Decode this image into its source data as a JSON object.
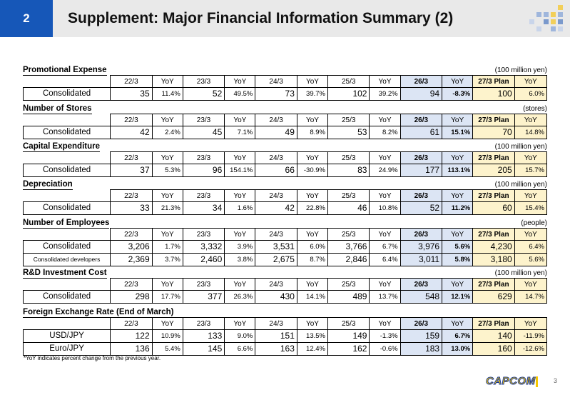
{
  "header": {
    "number": "2",
    "title": "Supplement: Major Financial Information Summary (2)"
  },
  "columns": [
    "22/3",
    "YoY",
    "23/3",
    "YoY",
    "24/3",
    "YoY",
    "25/3",
    "YoY",
    "26/3",
    "YoY",
    "27/3 Plan",
    "YoY"
  ],
  "sections": [
    {
      "title": "Promotional Expense",
      "unit": "(100 million yen)",
      "rows": [
        {
          "label": "Consolidated",
          "cells": [
            "35",
            "11.4%",
            "52",
            "49.5%",
            "73",
            "39.7%",
            "102",
            "39.2%",
            "94",
            "-8.3%",
            "100",
            "6.0%"
          ]
        }
      ]
    },
    {
      "title": "Number of Stores",
      "unit": "(stores)",
      "rows": [
        {
          "label": "Consolidated",
          "cells": [
            "42",
            "2.4%",
            "45",
            "7.1%",
            "49",
            "8.9%",
            "53",
            "8.2%",
            "61",
            "15.1%",
            "70",
            "14.8%"
          ]
        }
      ]
    },
    {
      "title": "Capital Expenditure",
      "unit": "(100 million yen)",
      "rows": [
        {
          "label": "Consolidated",
          "cells": [
            "37",
            "5.3%",
            "96",
            "154.1%",
            "66",
            "-30.9%",
            "83",
            "24.9%",
            "177",
            "113.1%",
            "205",
            "15.7%"
          ]
        }
      ]
    },
    {
      "title": "Depreciation",
      "unit": "(100 million yen)",
      "rows": [
        {
          "label": "Consolidated",
          "cells": [
            "33",
            "21.3%",
            "34",
            "1.6%",
            "42",
            "22.8%",
            "46",
            "10.8%",
            "52",
            "11.2%",
            "60",
            "15.4%"
          ]
        }
      ]
    },
    {
      "title": "Number of Employees",
      "unit": "(people)",
      "rows": [
        {
          "label": "Consolidated",
          "cells": [
            "3,206",
            "1.7%",
            "3,332",
            "3.9%",
            "3,531",
            "6.0%",
            "3,766",
            "6.7%",
            "3,976",
            "5.6%",
            "4,230",
            "6.4%"
          ]
        },
        {
          "label": "Consolidated developers",
          "cells": [
            "2,369",
            "3.7%",
            "2,460",
            "3.8%",
            "2,675",
            "8.7%",
            "2,846",
            "6.4%",
            "3,011",
            "5.8%",
            "3,180",
            "5.6%"
          ]
        }
      ]
    },
    {
      "title": "R&D Investment Cost",
      "unit": "(100 million yen)",
      "rows": [
        {
          "label": "Consolidated",
          "cells": [
            "298",
            "17.7%",
            "377",
            "26.3%",
            "430",
            "14.1%",
            "489",
            "13.7%",
            "548",
            "12.1%",
            "629",
            "14.7%"
          ]
        }
      ]
    },
    {
      "title": "Foreign Exchange Rate (End of March)",
      "unit": "",
      "rows": [
        {
          "label": "USD/JPY",
          "cells": [
            "122",
            "10.9%",
            "133",
            "9.0%",
            "151",
            "13.5%",
            "149",
            "-1.3%",
            "159",
            "6.7%",
            "140",
            "-11.9%"
          ]
        },
        {
          "label": "Euro/JPY",
          "cells": [
            "136",
            "5.4%",
            "145",
            "6.6%",
            "163",
            "12.4%",
            "162",
            "-0.6%",
            "183",
            "13.0%",
            "160",
            "-12.6%"
          ]
        }
      ]
    }
  ],
  "footnote": "*YoY indicates percent change from the previous year.",
  "logo": "CAPCOM",
  "page_number": "3",
  "colors": {
    "header_blue": "#1657b8",
    "fy26_fill": "#dce5f4",
    "plan_fill": "#fdf3cc",
    "logo_yellow": "#f6c700",
    "logo_outline": "#1a3a9c"
  }
}
